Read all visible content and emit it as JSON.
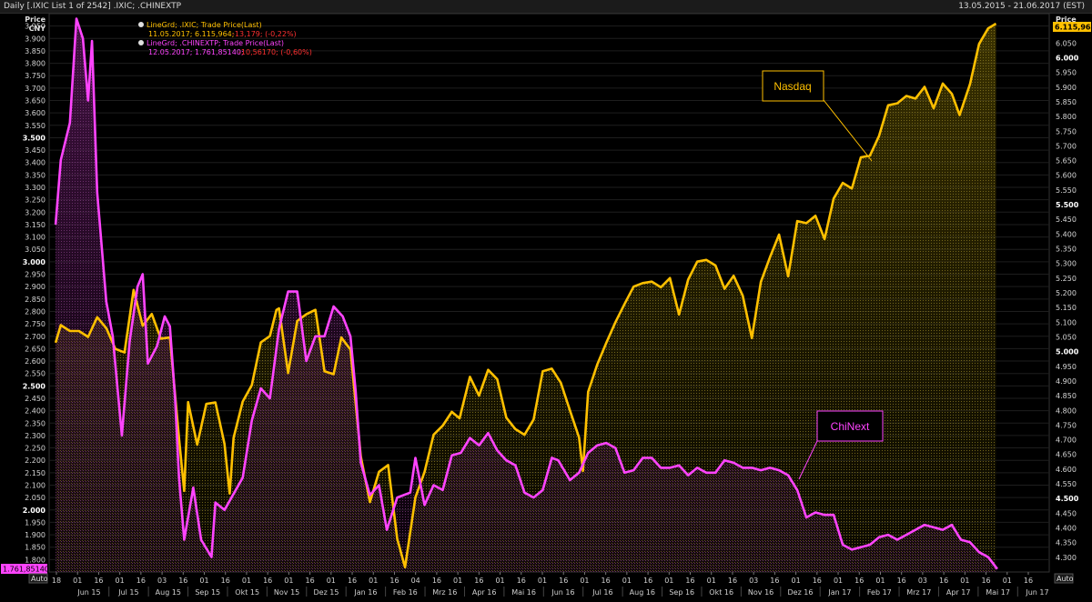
{
  "window": {
    "title": "Daily [.IXIC List 1 of 2542] .IXIC; .CHINEXTP",
    "date_range": "13.05.2015 - 21.06.2017 (EST)"
  },
  "axes": {
    "left_title": "Price",
    "left_unit": "CNY",
    "right_title": "Price",
    "left_last_value": "1.761,85140",
    "right_last_value": "6.115,964",
    "auto_label": "Auto"
  },
  "legend": [
    {
      "series": "LineGrd; .IXIC; Trade Price(Last)",
      "values": "11.05.2017; 6.115,964;",
      "change": "-13,179; (-0,22%)",
      "color": "#ffc000"
    },
    {
      "series": "LineGrd; .CHINEXTP; Trade Price(Last)",
      "values": "12.05.2017; 1.761,85140;",
      "change": "-10,56170; (-0,60%)",
      "color": "#ff44ff"
    }
  ],
  "annotations": {
    "nasdaq": "Nasdaq",
    "chinext": "ChiNext"
  },
  "chart_data": {
    "type": "line",
    "left_axis": {
      "range": [
        1750,
        4000
      ],
      "ticks": [
        "1.800",
        "1.850",
        "1.900",
        "1.950",
        "2.000",
        "2.050",
        "2.100",
        "2.150",
        "2.200",
        "2.250",
        "2.300",
        "2.350",
        "2.400",
        "2.450",
        "2.500",
        "2.550",
        "2.600",
        "2.650",
        "2.700",
        "2.750",
        "2.800",
        "2.850",
        "2.900",
        "2.950",
        "3.000",
        "3.050",
        "3.100",
        "3.150",
        "3.200",
        "3.250",
        "3.300",
        "3.350",
        "3.400",
        "3.450",
        "3.500",
        "3.550",
        "3.600",
        "3.650",
        "3.700",
        "3.750",
        "3.800",
        "3.850",
        "3.900",
        "3.950"
      ],
      "bold_ticks": [
        "2.000",
        "2.500",
        "3.000",
        "3.500"
      ]
    },
    "right_axis": {
      "range": [
        4250,
        6150
      ],
      "ticks": [
        "4.300",
        "4.350",
        "4.400",
        "4.450",
        "4.500",
        "4.550",
        "4.600",
        "4.650",
        "4.700",
        "4.750",
        "4.800",
        "4.850",
        "4.900",
        "4.950",
        "5.000",
        "5.050",
        "5.100",
        "5.150",
        "5.200",
        "5.250",
        "5.300",
        "5.350",
        "5.400",
        "5.450",
        "5.500",
        "5.550",
        "5.600",
        "5.650",
        "5.700",
        "5.750",
        "5.800",
        "5.850",
        "5.900",
        "5.950",
        "6.000",
        "6.050"
      ],
      "bold_ticks": [
        "4.500",
        "5.000",
        "5.500",
        "6.000"
      ]
    },
    "x_axis": {
      "day_ticks": [
        "18",
        "01",
        "16",
        "01",
        "16",
        "03",
        "16",
        "01",
        "16",
        "01",
        "16",
        "01",
        "16",
        "01",
        "16",
        "01",
        "16",
        "04",
        "16",
        "01",
        "16",
        "01",
        "16",
        "01",
        "16",
        "01",
        "16",
        "01",
        "16",
        "01",
        "16",
        "01",
        "16",
        "03",
        "16",
        "01",
        "16",
        "01",
        "16",
        "01",
        "16",
        "03",
        "16",
        "01",
        "16",
        "01",
        "16"
      ],
      "month_ticks": [
        "Jun 15",
        "Jul 15",
        "Aug 15",
        "Sep 15",
        "Okt 15",
        "Nov 15",
        "Dez 15",
        "Jan 16",
        "Feb 16",
        "Mrz 16",
        "Apr 16",
        "Mai 16",
        "Jun 16",
        "Jul 16",
        "Aug 16",
        "Sep 16",
        "Okt 16",
        "Nov 16",
        "Dez 16",
        "Jan 17",
        "Feb 17",
        "Mrz 17",
        "Apr 17",
        "Mai 17",
        "Jun 17"
      ]
    },
    "series": [
      {
        "name": ".IXIC",
        "color": "#ffc000",
        "axis": "right",
        "points": [
          [
            "2015-05-18",
            5030
          ],
          [
            "2015-05-22",
            5090
          ],
          [
            "2015-05-29",
            5070
          ],
          [
            "2015-06-05",
            5070
          ],
          [
            "2015-06-12",
            5050
          ],
          [
            "2015-06-19",
            5117
          ],
          [
            "2015-06-26",
            5080
          ],
          [
            "2015-07-03",
            5009
          ],
          [
            "2015-07-10",
            4997
          ],
          [
            "2015-07-17",
            5210
          ],
          [
            "2015-07-24",
            5088
          ],
          [
            "2015-07-31",
            5128
          ],
          [
            "2015-08-07",
            5044
          ],
          [
            "2015-08-14",
            5048
          ],
          [
            "2015-08-21",
            4706
          ],
          [
            "2015-08-25",
            4526
          ],
          [
            "2015-08-28",
            4828
          ],
          [
            "2015-09-04",
            4683
          ],
          [
            "2015-09-11",
            4822
          ],
          [
            "2015-09-18",
            4827
          ],
          [
            "2015-09-25",
            4686
          ],
          [
            "2015-09-29",
            4517
          ],
          [
            "2015-10-02",
            4707
          ],
          [
            "2015-10-09",
            4830
          ],
          [
            "2015-10-16",
            4886
          ],
          [
            "2015-10-23",
            5031
          ],
          [
            "2015-10-30",
            5053
          ],
          [
            "2015-11-04",
            5142
          ],
          [
            "2015-11-06",
            5147
          ],
          [
            "2015-11-13",
            4927
          ],
          [
            "2015-11-20",
            5104
          ],
          [
            "2015-11-27",
            5127
          ],
          [
            "2015-12-04",
            5142
          ],
          [
            "2015-12-11",
            4933
          ],
          [
            "2015-12-18",
            4923
          ],
          [
            "2015-12-24",
            5048
          ],
          [
            "2015-12-31",
            5007
          ],
          [
            "2016-01-08",
            4643
          ],
          [
            "2016-01-15",
            4488
          ],
          [
            "2016-01-22",
            4591
          ],
          [
            "2016-01-29",
            4614
          ],
          [
            "2016-02-05",
            4363
          ],
          [
            "2016-02-11",
            4266
          ],
          [
            "2016-02-19",
            4504
          ],
          [
            "2016-02-26",
            4590
          ],
          [
            "2016-03-04",
            4717
          ],
          [
            "2016-03-11",
            4748
          ],
          [
            "2016-03-18",
            4795
          ],
          [
            "2016-03-24",
            4773
          ],
          [
            "2016-04-01",
            4914
          ],
          [
            "2016-04-08",
            4850
          ],
          [
            "2016-04-15",
            4938
          ],
          [
            "2016-04-22",
            4906
          ],
          [
            "2016-04-29",
            4775
          ],
          [
            "2016-05-06",
            4736
          ],
          [
            "2016-05-13",
            4717
          ],
          [
            "2016-05-20",
            4769
          ],
          [
            "2016-05-27",
            4933
          ],
          [
            "2016-06-03",
            4942
          ],
          [
            "2016-06-10",
            4894
          ],
          [
            "2016-06-17",
            4800
          ],
          [
            "2016-06-24",
            4708
          ],
          [
            "2016-06-27",
            4594
          ],
          [
            "2016-07-01",
            4863
          ],
          [
            "2016-07-08",
            4956
          ],
          [
            "2016-07-15",
            5030
          ],
          [
            "2016-07-22",
            5100
          ],
          [
            "2016-07-29",
            5162
          ],
          [
            "2016-08-05",
            5221
          ],
          [
            "2016-08-12",
            5233
          ],
          [
            "2016-08-19",
            5238
          ],
          [
            "2016-08-26",
            5219
          ],
          [
            "2016-09-02",
            5250
          ],
          [
            "2016-09-09",
            5126
          ],
          [
            "2016-09-16",
            5245
          ],
          [
            "2016-09-23",
            5306
          ],
          [
            "2016-09-30",
            5312
          ],
          [
            "2016-10-07",
            5293
          ],
          [
            "2016-10-14",
            5214
          ],
          [
            "2016-10-21",
            5258
          ],
          [
            "2016-10-28",
            5190
          ],
          [
            "2016-11-04",
            5046
          ],
          [
            "2016-11-11",
            5237
          ],
          [
            "2016-11-18",
            5321
          ],
          [
            "2016-11-25",
            5398
          ],
          [
            "2016-12-02",
            5256
          ],
          [
            "2016-12-09",
            5444
          ],
          [
            "2016-12-16",
            5437
          ],
          [
            "2016-12-23",
            5462
          ],
          [
            "2016-12-30",
            5383
          ],
          [
            "2017-01-06",
            5521
          ],
          [
            "2017-01-13",
            5574
          ],
          [
            "2017-01-20",
            5555
          ],
          [
            "2017-01-27",
            5661
          ],
          [
            "2017-02-03",
            5667
          ],
          [
            "2017-02-10",
            5734
          ],
          [
            "2017-02-17",
            5838
          ],
          [
            "2017-02-24",
            5845
          ],
          [
            "2017-03-03",
            5870
          ],
          [
            "2017-03-10",
            5861
          ],
          [
            "2017-03-17",
            5901
          ],
          [
            "2017-03-24",
            5828
          ],
          [
            "2017-03-31",
            5912
          ],
          [
            "2017-04-07",
            5877
          ],
          [
            "2017-04-13",
            5805
          ],
          [
            "2017-04-21",
            5910
          ],
          [
            "2017-04-28",
            6047
          ],
          [
            "2017-05-05",
            6100
          ],
          [
            "2017-05-11",
            6116
          ]
        ]
      },
      {
        "name": ".CHINEXTP",
        "color": "#ff44ff",
        "axis": "left",
        "points": [
          [
            "2015-05-18",
            3150
          ],
          [
            "2015-05-22",
            3410
          ],
          [
            "2015-05-29",
            3560
          ],
          [
            "2015-06-03",
            3980
          ],
          [
            "2015-06-08",
            3900
          ],
          [
            "2015-06-12",
            3650
          ],
          [
            "2015-06-15",
            3890
          ],
          [
            "2015-06-19",
            3280
          ],
          [
            "2015-06-26",
            2840
          ],
          [
            "2015-07-01",
            2700
          ],
          [
            "2015-07-08",
            2300
          ],
          [
            "2015-07-14",
            2680
          ],
          [
            "2015-07-20",
            2900
          ],
          [
            "2015-07-24",
            2950
          ],
          [
            "2015-07-28",
            2590
          ],
          [
            "2015-08-04",
            2660
          ],
          [
            "2015-08-10",
            2780
          ],
          [
            "2015-08-14",
            2740
          ],
          [
            "2015-08-18",
            2450
          ],
          [
            "2015-08-21",
            2130
          ],
          [
            "2015-08-25",
            1880
          ],
          [
            "2015-09-01",
            2090
          ],
          [
            "2015-09-07",
            1880
          ],
          [
            "2015-09-15",
            1810
          ],
          [
            "2015-09-18",
            2030
          ],
          [
            "2015-09-25",
            2000
          ],
          [
            "2015-10-09",
            2130
          ],
          [
            "2015-10-16",
            2360
          ],
          [
            "2015-10-23",
            2490
          ],
          [
            "2015-10-30",
            2450
          ],
          [
            "2015-11-06",
            2730
          ],
          [
            "2015-11-13",
            2880
          ],
          [
            "2015-11-20",
            2880
          ],
          [
            "2015-11-27",
            2600
          ],
          [
            "2015-12-04",
            2700
          ],
          [
            "2015-12-11",
            2700
          ],
          [
            "2015-12-18",
            2820
          ],
          [
            "2015-12-25",
            2780
          ],
          [
            "2015-12-31",
            2700
          ],
          [
            "2016-01-04",
            2480
          ],
          [
            "2016-01-08",
            2190
          ],
          [
            "2016-01-15",
            2060
          ],
          [
            "2016-01-22",
            2100
          ],
          [
            "2016-01-28",
            1920
          ],
          [
            "2016-02-05",
            2050
          ],
          [
            "2016-02-15",
            2070
          ],
          [
            "2016-02-19",
            2210
          ],
          [
            "2016-02-26",
            2020
          ],
          [
            "2016-03-04",
            2100
          ],
          [
            "2016-03-11",
            2080
          ],
          [
            "2016-03-18",
            2220
          ],
          [
            "2016-03-25",
            2230
          ],
          [
            "2016-04-01",
            2290
          ],
          [
            "2016-04-08",
            2260
          ],
          [
            "2016-04-15",
            2310
          ],
          [
            "2016-04-22",
            2240
          ],
          [
            "2016-04-29",
            2200
          ],
          [
            "2016-05-06",
            2180
          ],
          [
            "2016-05-13",
            2070
          ],
          [
            "2016-05-20",
            2050
          ],
          [
            "2016-05-27",
            2080
          ],
          [
            "2016-06-03",
            2210
          ],
          [
            "2016-06-08",
            2200
          ],
          [
            "2016-06-17",
            2120
          ],
          [
            "2016-06-24",
            2150
          ],
          [
            "2016-07-01",
            2230
          ],
          [
            "2016-07-08",
            2260
          ],
          [
            "2016-07-15",
            2270
          ],
          [
            "2016-07-22",
            2250
          ],
          [
            "2016-07-29",
            2150
          ],
          [
            "2016-08-05",
            2160
          ],
          [
            "2016-08-12",
            2210
          ],
          [
            "2016-08-19",
            2210
          ],
          [
            "2016-08-26",
            2170
          ],
          [
            "2016-09-02",
            2170
          ],
          [
            "2016-09-09",
            2180
          ],
          [
            "2016-09-16",
            2140
          ],
          [
            "2016-09-23",
            2170
          ],
          [
            "2016-09-30",
            2150
          ],
          [
            "2016-10-07",
            2150
          ],
          [
            "2016-10-14",
            2200
          ],
          [
            "2016-10-21",
            2190
          ],
          [
            "2016-10-28",
            2170
          ],
          [
            "2016-11-04",
            2170
          ],
          [
            "2016-11-11",
            2160
          ],
          [
            "2016-11-18",
            2170
          ],
          [
            "2016-11-25",
            2160
          ],
          [
            "2016-12-02",
            2140
          ],
          [
            "2016-12-09",
            2080
          ],
          [
            "2016-12-16",
            1970
          ],
          [
            "2016-12-23",
            1990
          ],
          [
            "2016-12-30",
            1980
          ],
          [
            "2017-01-06",
            1980
          ],
          [
            "2017-01-13",
            1860
          ],
          [
            "2017-01-20",
            1840
          ],
          [
            "2017-01-27",
            1850
          ],
          [
            "2017-02-03",
            1860
          ],
          [
            "2017-02-10",
            1890
          ],
          [
            "2017-02-17",
            1900
          ],
          [
            "2017-02-24",
            1880
          ],
          [
            "2017-03-03",
            1900
          ],
          [
            "2017-03-10",
            1920
          ],
          [
            "2017-03-17",
            1940
          ],
          [
            "2017-03-24",
            1930
          ],
          [
            "2017-03-31",
            1920
          ],
          [
            "2017-04-07",
            1940
          ],
          [
            "2017-04-14",
            1880
          ],
          [
            "2017-04-21",
            1870
          ],
          [
            "2017-04-28",
            1830
          ],
          [
            "2017-05-05",
            1810
          ],
          [
            "2017-05-12",
            1762
          ]
        ]
      }
    ]
  }
}
